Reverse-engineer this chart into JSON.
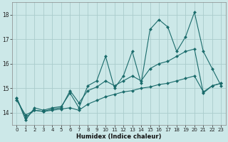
{
  "xlabel": "Humidex (Indice chaleur)",
  "bg_color": "#cce8e8",
  "grid_color": "#aacccc",
  "line_color": "#1a6b6b",
  "xlim": [
    -0.5,
    23.5
  ],
  "ylim": [
    13.5,
    18.5
  ],
  "yticks": [
    14,
    15,
    16,
    17,
    18
  ],
  "xticks": [
    0,
    1,
    2,
    3,
    4,
    5,
    6,
    7,
    8,
    9,
    10,
    11,
    12,
    13,
    14,
    15,
    16,
    17,
    18,
    19,
    20,
    21,
    22,
    23
  ],
  "series1_x": [
    0,
    1,
    2,
    3,
    4,
    5,
    6,
    7,
    8,
    9,
    10,
    11,
    12,
    13,
    14,
    15,
    16,
    17,
    18,
    19,
    20,
    21,
    22,
    23
  ],
  "series1_y": [
    14.6,
    13.7,
    14.2,
    14.1,
    14.2,
    14.25,
    14.8,
    14.2,
    15.1,
    15.3,
    16.3,
    15.0,
    15.5,
    16.5,
    15.2,
    17.4,
    17.8,
    17.5,
    16.5,
    17.1,
    18.1,
    16.5,
    15.8,
    15.1
  ],
  "series2_x": [
    0,
    1,
    2,
    3,
    4,
    5,
    6,
    7,
    8,
    9,
    10,
    11,
    12,
    13,
    14,
    15,
    16,
    17,
    18,
    19,
    20,
    21,
    22,
    23
  ],
  "series2_y": [
    14.6,
    13.8,
    14.1,
    14.05,
    14.15,
    14.2,
    14.9,
    14.4,
    14.9,
    15.05,
    15.3,
    15.1,
    15.3,
    15.5,
    15.3,
    15.8,
    16.0,
    16.1,
    16.3,
    16.5,
    16.6,
    14.8,
    15.1,
    15.2
  ],
  "series3_x": [
    0,
    1,
    2,
    3,
    4,
    5,
    6,
    7,
    8,
    9,
    10,
    11,
    12,
    13,
    14,
    15,
    16,
    17,
    18,
    19,
    20,
    21,
    22,
    23
  ],
  "series3_y": [
    14.5,
    13.9,
    14.1,
    14.05,
    14.1,
    14.15,
    14.2,
    14.1,
    14.35,
    14.5,
    14.65,
    14.75,
    14.85,
    14.9,
    15.0,
    15.05,
    15.15,
    15.2,
    15.3,
    15.4,
    15.5,
    14.85,
    15.1,
    15.2
  ]
}
